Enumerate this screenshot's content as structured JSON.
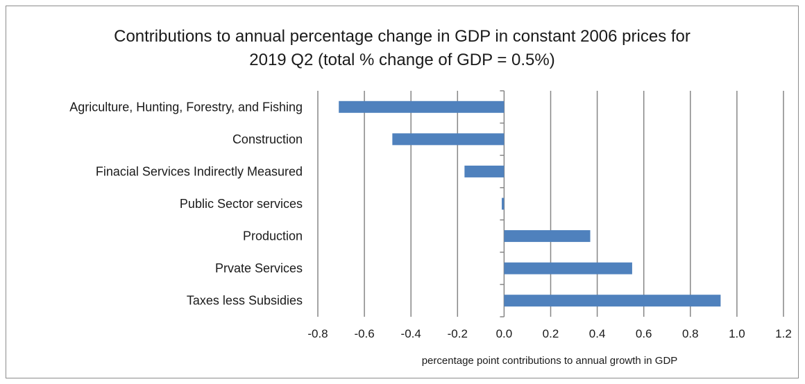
{
  "chart_data": {
    "type": "bar",
    "orientation": "horizontal",
    "title_line1": "Contributions to annual percentage change in GDP in constant 2006 prices for",
    "title_line2": "2019 Q2 (total % change of GDP = 0.5%)",
    "xlabel": "percentage point contributions to annual growth in GDP",
    "ylabel": "",
    "categories": [
      "Agriculture, Hunting, Forestry, and Fishing",
      "Construction",
      "Finacial Services Indirectly Measured",
      "Public Sector services",
      "Production",
      "Prvate Services",
      "Taxes less Subsidies"
    ],
    "values": [
      -0.71,
      -0.48,
      -0.17,
      -0.01,
      0.37,
      0.55,
      0.93
    ],
    "xlim": [
      -0.8,
      1.2
    ],
    "xticks": [
      "-0.8",
      "-0.6",
      "-0.4",
      "-0.2",
      "0.0",
      "0.2",
      "0.4",
      "0.6",
      "0.8",
      "1.0",
      "1.2"
    ],
    "grid": "vertical",
    "legend": "none",
    "bar_color": "#4f81bd",
    "grid_color": "#868686"
  }
}
